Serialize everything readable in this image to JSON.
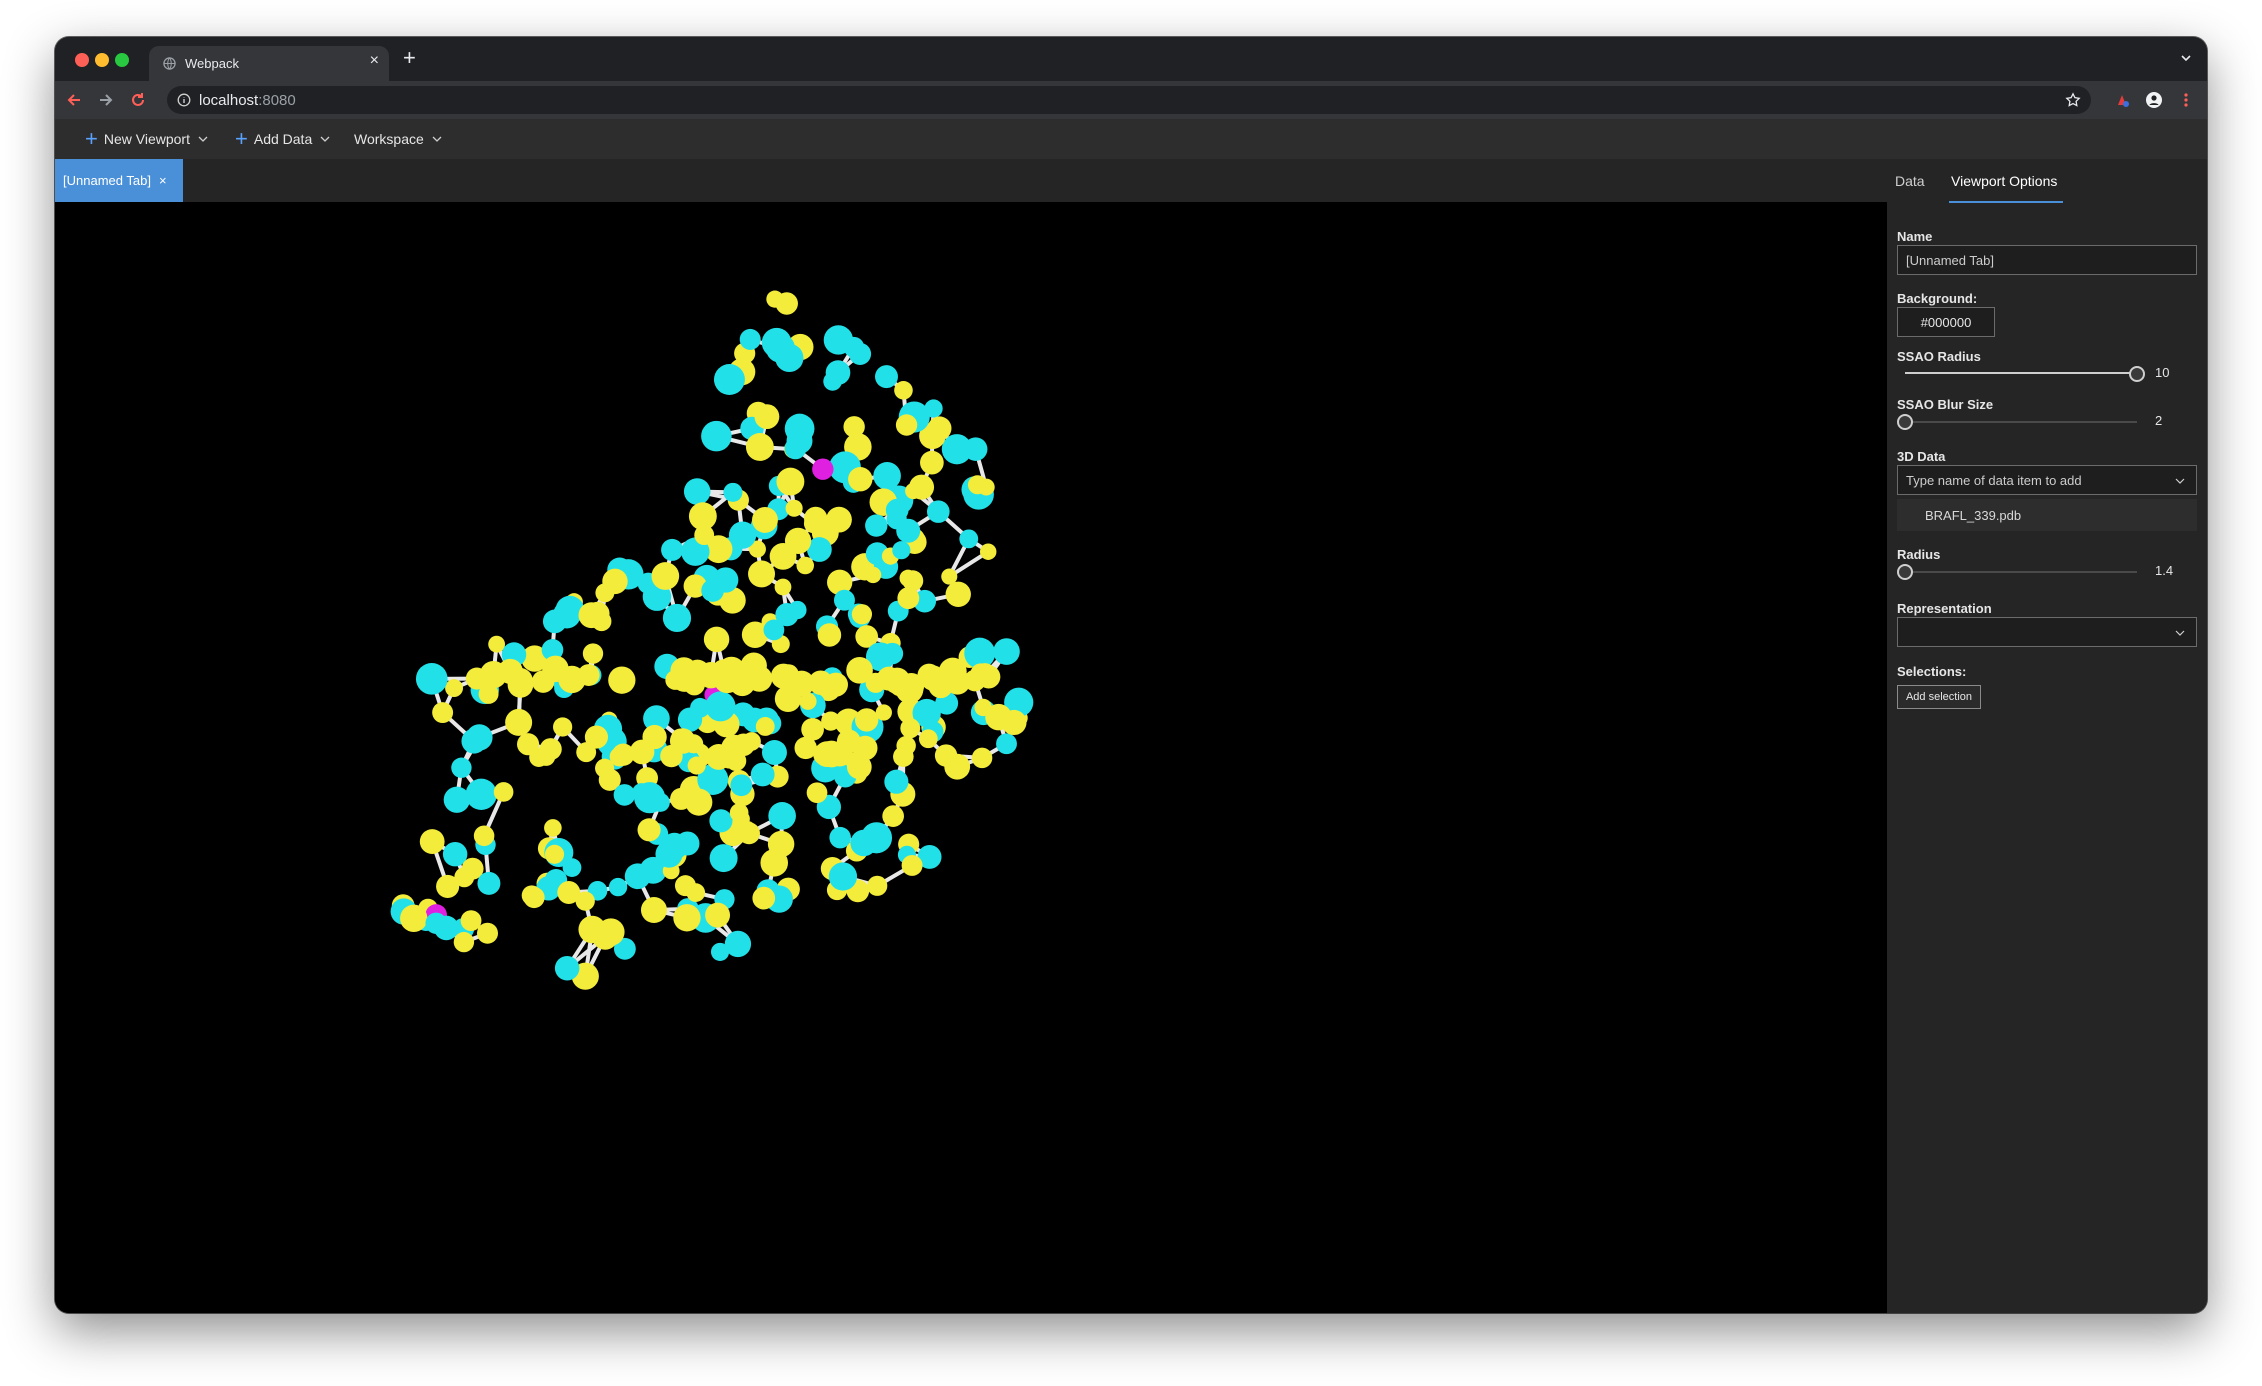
{
  "browser": {
    "tab_title": "Webpack",
    "tab_close": "×",
    "new_tab": "+",
    "url_host": "localhost",
    "url_port": ":8080"
  },
  "menubar": {
    "new_viewport": "New Viewport",
    "add_data": "Add Data",
    "workspace": "Workspace"
  },
  "viewport_tab": {
    "label": "[Unnamed Tab]",
    "close": "×"
  },
  "panel": {
    "tabs": [
      {
        "label": "Data"
      },
      {
        "label": "Viewport Options"
      }
    ],
    "active_tab": "Viewport Options",
    "name_label": "Name",
    "name_value": "[Unnamed Tab]",
    "background_label": "Background:",
    "background_value": "#000000",
    "ssao_radius_label": "SSAO Radius",
    "ssao_radius_value": "10",
    "ssao_radius_fraction": 1.0,
    "ssao_blur_label": "SSAO Blur Size",
    "ssao_blur_value": "2",
    "ssao_blur_fraction": 0.0,
    "data_3d_label": "3D Data",
    "data_3d_placeholder": "Type name of data item to add",
    "data_items": [
      "BRAFL_339.pdb"
    ],
    "radius_label": "Radius",
    "radius_value": "1.4",
    "radius_fraction": 0.0,
    "representation_label": "Representation",
    "representation_value": "",
    "selections_label": "Selections:",
    "add_selection": "Add selection"
  },
  "colors": {
    "accent": "#4a90d9",
    "atom_cyan": "#22e0e8",
    "atom_yellow": "#f4ec3a",
    "atom_magenta": "#e020e0",
    "bond": "#e8e8e8",
    "viewport_bg": "#000000"
  }
}
